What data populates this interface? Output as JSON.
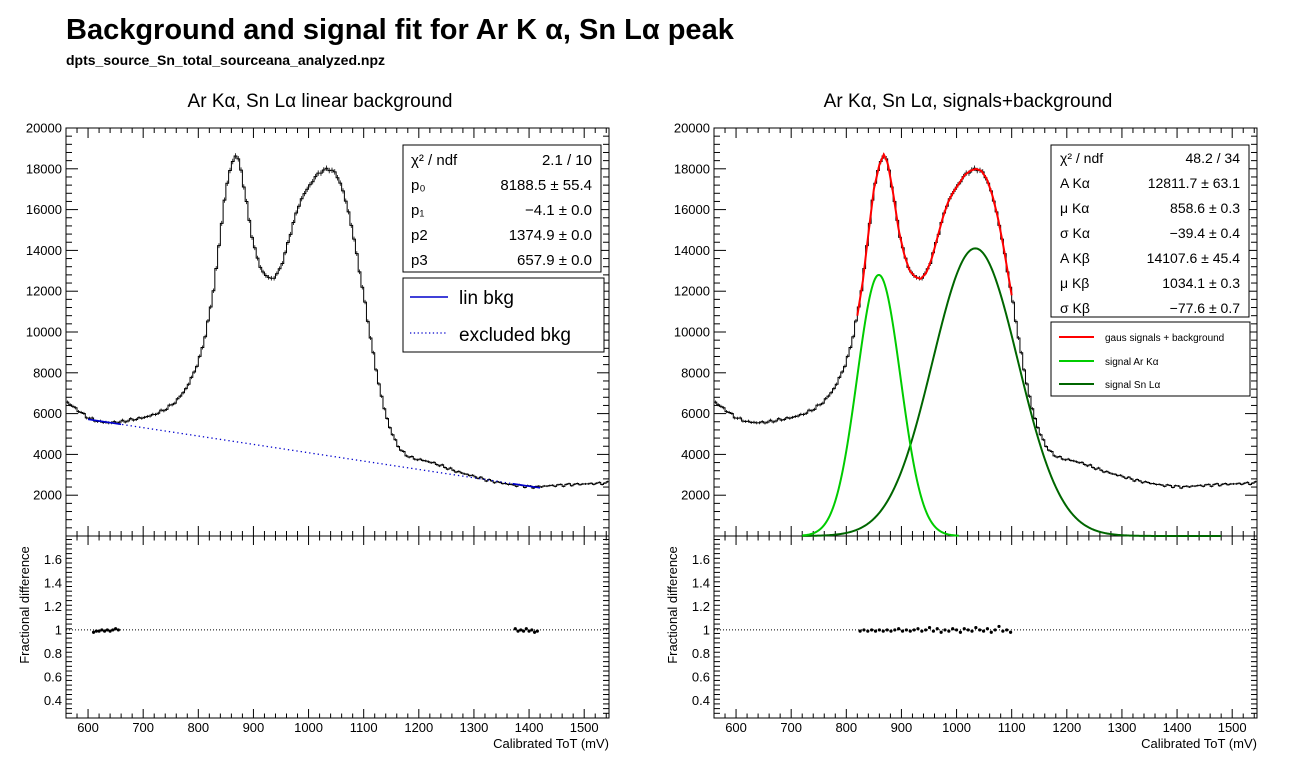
{
  "page": {
    "title": "Background and signal fit for Ar K  α, Sn Lα peak",
    "subtitle": "dpts_source_Sn_total_sourceana_analyzed.npz"
  },
  "chart_data": [
    {
      "type": "line",
      "title": "Ar Kα, Sn Lα linear background",
      "xlim": [
        560,
        1545
      ],
      "ylim": [
        0,
        20000
      ],
      "yticks": [
        "2000",
        "4000",
        "6000",
        "8000",
        "10000",
        "12000",
        "14000",
        "16000",
        "18000",
        "20000"
      ],
      "data_profile": [
        [
          560,
          6600
        ],
        [
          580,
          6200
        ],
        [
          600,
          5800
        ],
        [
          620,
          5600
        ],
        [
          640,
          5550
        ],
        [
          660,
          5600
        ],
        [
          680,
          5700
        ],
        [
          700,
          5800
        ],
        [
          720,
          5950
        ],
        [
          740,
          6200
        ],
        [
          760,
          6600
        ],
        [
          780,
          7300
        ],
        [
          800,
          8500
        ],
        [
          810,
          9500
        ],
        [
          820,
          10800
        ],
        [
          830,
          12500
        ],
        [
          840,
          14800
        ],
        [
          850,
          17000
        ],
        [
          860,
          18200
        ],
        [
          868,
          18700
        ],
        [
          875,
          18300
        ],
        [
          885,
          16800
        ],
        [
          895,
          15000
        ],
        [
          905,
          13800
        ],
        [
          915,
          13000
        ],
        [
          925,
          12700
        ],
        [
          935,
          12600
        ],
        [
          945,
          12900
        ],
        [
          955,
          13600
        ],
        [
          965,
          14600
        ],
        [
          975,
          15600
        ],
        [
          985,
          16400
        ],
        [
          995,
          16900
        ],
        [
          1005,
          17300
        ],
        [
          1015,
          17700
        ],
        [
          1025,
          17900
        ],
        [
          1035,
          18000
        ],
        [
          1045,
          17900
        ],
        [
          1055,
          17500
        ],
        [
          1065,
          16700
        ],
        [
          1075,
          15600
        ],
        [
          1085,
          14200
        ],
        [
          1095,
          12600
        ],
        [
          1105,
          11000
        ],
        [
          1115,
          9300
        ],
        [
          1125,
          7800
        ],
        [
          1135,
          6500
        ],
        [
          1145,
          5500
        ],
        [
          1155,
          4800
        ],
        [
          1165,
          4300
        ],
        [
          1175,
          4000
        ],
        [
          1190,
          3800
        ],
        [
          1210,
          3700
        ],
        [
          1230,
          3550
        ],
        [
          1250,
          3350
        ],
        [
          1270,
          3150
        ],
        [
          1290,
          3000
        ],
        [
          1310,
          2850
        ],
        [
          1330,
          2700
        ],
        [
          1350,
          2600
        ],
        [
          1370,
          2500
        ],
        [
          1390,
          2450
        ],
        [
          1410,
          2400
        ],
        [
          1430,
          2450
        ],
        [
          1460,
          2500
        ],
        [
          1500,
          2550
        ],
        [
          1545,
          2600
        ]
      ],
      "fit_line": [
        [
          600,
          5720
        ],
        [
          1420,
          2360
        ]
      ],
      "fit_solid_ranges": [
        [
          600,
          660
        ],
        [
          1370,
          1420
        ]
      ],
      "stats": {
        "chi2_label": "χ² / ndf",
        "chi2": "2.1 / 10",
        "p0_label": "p₀",
        "p0": "8188.5 ± 55.4",
        "p1_label": "p₁",
        "p1": "−4.1 ± 0.0",
        "p2_label": "p2",
        "p2": "1374.9 ± 0.0",
        "p3_label": "p3",
        "p3": "657.9 ± 0.0"
      },
      "legend": [
        "lin bkg",
        "excluded bkg"
      ],
      "ratio": {
        "ylabel": "Fractional difference",
        "ylim": [
          0.25,
          1.8
        ],
        "yticks": [
          "0.4",
          "0.6",
          "0.8",
          "1",
          "1.2",
          "1.4",
          "1.6"
        ],
        "points": [
          [
            610,
            0.98
          ],
          [
            615,
            0.99
          ],
          [
            620,
            0.99
          ],
          [
            625,
            1.0
          ],
          [
            630,
            0.99
          ],
          [
            635,
            1.0
          ],
          [
            640,
            0.99
          ],
          [
            645,
            1.0
          ],
          [
            650,
            1.01
          ],
          [
            655,
            1.0
          ],
          [
            1375,
            1.01
          ],
          [
            1380,
            0.99
          ],
          [
            1385,
            1.0
          ],
          [
            1390,
            0.99
          ],
          [
            1395,
            1.01
          ],
          [
            1400,
            0.99
          ],
          [
            1405,
            1.0
          ],
          [
            1410,
            0.98
          ],
          [
            1415,
            0.99
          ]
        ]
      },
      "xlabel": "Calibrated ToT (mV)",
      "xticks": [
        "600",
        "700",
        "800",
        "900",
        "1000",
        "1100",
        "1200",
        "1300",
        "1400",
        "1500"
      ]
    },
    {
      "type": "line",
      "title": "Ar Kα, Sn Lα, signals+background",
      "xlim": [
        560,
        1545
      ],
      "ylim": [
        0,
        20000
      ],
      "yticks": [
        "2000",
        "4000",
        "6000",
        "8000",
        "10000",
        "12000",
        "14000",
        "16000",
        "18000",
        "20000"
      ],
      "stats": {
        "chi2_label": "χ² / ndf",
        "chi2": "48.2 / 34",
        "a_ka_label": "A Kα",
        "a_ka": "12811.7  ± 63.1",
        "mu_ka_label": "μ Kα",
        "mu_ka": "858.6  ± 0.3",
        "s_ka_label": "σ Kα",
        "s_ka": "−39.4  ± 0.4",
        "a_kb_label": "A Kβ",
        "a_kb": "14107.6  ± 45.4",
        "mu_kb_label": "μ Kβ",
        "mu_kb": "1034.1  ± 0.3",
        "s_kb_label": "σ Kβ",
        "s_kb": "−77.6  ± 0.7"
      },
      "legend": [
        "gaus signals + background",
        "signal Ar Kα",
        "signal Sn Lα"
      ],
      "series_colors": [
        "#ff0000",
        "#00cc00",
        "#006600"
      ],
      "ratio": {
        "ylabel": "Fractional difference",
        "ylim": [
          0.25,
          1.8
        ],
        "yticks": [
          "0.4",
          "0.6",
          "0.8",
          "1",
          "1.2",
          "1.4",
          "1.6"
        ],
        "points": [
          [
            825,
            0.99
          ],
          [
            832,
            1.0
          ],
          [
            839,
            0.99
          ],
          [
            846,
            1.0
          ],
          [
            853,
            0.99
          ],
          [
            860,
            1.0
          ],
          [
            867,
            0.99
          ],
          [
            874,
            1.0
          ],
          [
            881,
            0.99
          ],
          [
            888,
            1.0
          ],
          [
            895,
            1.01
          ],
          [
            902,
            0.99
          ],
          [
            909,
            1.0
          ],
          [
            916,
            0.99
          ],
          [
            923,
            1.0
          ],
          [
            930,
            1.01
          ],
          [
            937,
            0.99
          ],
          [
            944,
            1.0
          ],
          [
            951,
            1.02
          ],
          [
            958,
            0.99
          ],
          [
            965,
            1.01
          ],
          [
            972,
            0.98
          ],
          [
            979,
            1.0
          ],
          [
            986,
            0.99
          ],
          [
            993,
            1.01
          ],
          [
            1000,
            1.0
          ],
          [
            1007,
            0.98
          ],
          [
            1014,
            1.01
          ],
          [
            1021,
            1.0
          ],
          [
            1028,
            0.99
          ],
          [
            1035,
            1.02
          ],
          [
            1042,
            1.0
          ],
          [
            1049,
            0.99
          ],
          [
            1056,
            1.01
          ],
          [
            1063,
            0.98
          ],
          [
            1070,
            1.0
          ],
          [
            1077,
            1.03
          ],
          [
            1084,
            0.99
          ],
          [
            1091,
            1.0
          ],
          [
            1098,
            0.98
          ]
        ]
      },
      "xlabel": "Calibrated ToT (mV)",
      "xticks": [
        "600",
        "700",
        "800",
        "900",
        "1000",
        "1100",
        "1200",
        "1300",
        "1400",
        "1500"
      ]
    }
  ]
}
